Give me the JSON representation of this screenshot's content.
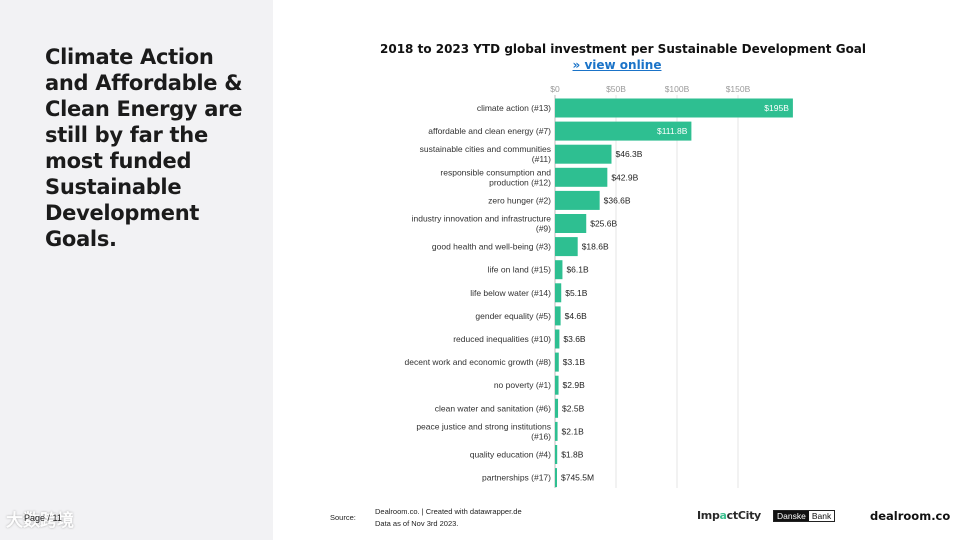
{
  "slide": {
    "headline": "Climate Action and Affordable & Clean Energy are still by far the most funded Sustainable Development Goals.",
    "page_label": "Page / 11",
    "watermark": "大数跨境"
  },
  "chart_data": {
    "type": "bar",
    "orientation": "horizontal",
    "title": "2018 to 2023 YTD global investment per Sustainable Development Goal",
    "link_text": "» view online",
    "unit": "$B",
    "x_ticks": [
      "$0",
      "$50B",
      "$100B",
      "$150B"
    ],
    "x_tick_values": [
      0,
      50,
      100,
      150
    ],
    "xlim": [
      0,
      200
    ],
    "grid": true,
    "bar_color": "#2ebf91",
    "categories": [
      [
        "climate action (#13)"
      ],
      [
        "affordable and clean energy (#7)"
      ],
      [
        "sustainable cities and communities",
        "(#11)"
      ],
      [
        "responsible consumption and",
        "production (#12)"
      ],
      [
        "zero hunger (#2)"
      ],
      [
        "industry innovation and infrastructure",
        "(#9)"
      ],
      [
        "good health and well-being (#3)"
      ],
      [
        "life on land (#15)"
      ],
      [
        "life below water (#14)"
      ],
      [
        "gender equality (#5)"
      ],
      [
        "reduced inequalities (#10)"
      ],
      [
        "decent work and economic growth (#8)"
      ],
      [
        "no poverty (#1)"
      ],
      [
        "clean water and sanitation (#6)"
      ],
      [
        "peace justice and strong institutions",
        "(#16)"
      ],
      [
        "quality education (#4)"
      ],
      [
        "partnerships (#17)"
      ]
    ],
    "values": [
      195,
      111.8,
      46.3,
      42.9,
      36.6,
      25.6,
      18.6,
      6.1,
      5.1,
      4.6,
      3.6,
      3.1,
      2.9,
      2.5,
      2.1,
      1.8,
      0.7455
    ],
    "value_labels": [
      "$195B",
      "$111.8B",
      "$46.3B",
      "$42.9B",
      "$36.6B",
      "$25.6B",
      "$18.6B",
      "$6.1B",
      "$5.1B",
      "$4.6B",
      "$3.6B",
      "$3.1B",
      "$2.9B",
      "$2.5B",
      "$2.1B",
      "$1.8B",
      "$745.5M"
    ]
  },
  "footer": {
    "source_label": "Source:",
    "source_line1": "Dealroom.co. | Created with datawrapper.de",
    "source_line2": "Data as of Nov 3rd 2023.",
    "logo_impact_a": "Imp",
    "logo_impact_b": "a",
    "logo_impact_c": "ctCity",
    "logo_danske_a": "Danske",
    "logo_danske_b": "Bank",
    "logo_dealroom": "dealroom.co"
  }
}
